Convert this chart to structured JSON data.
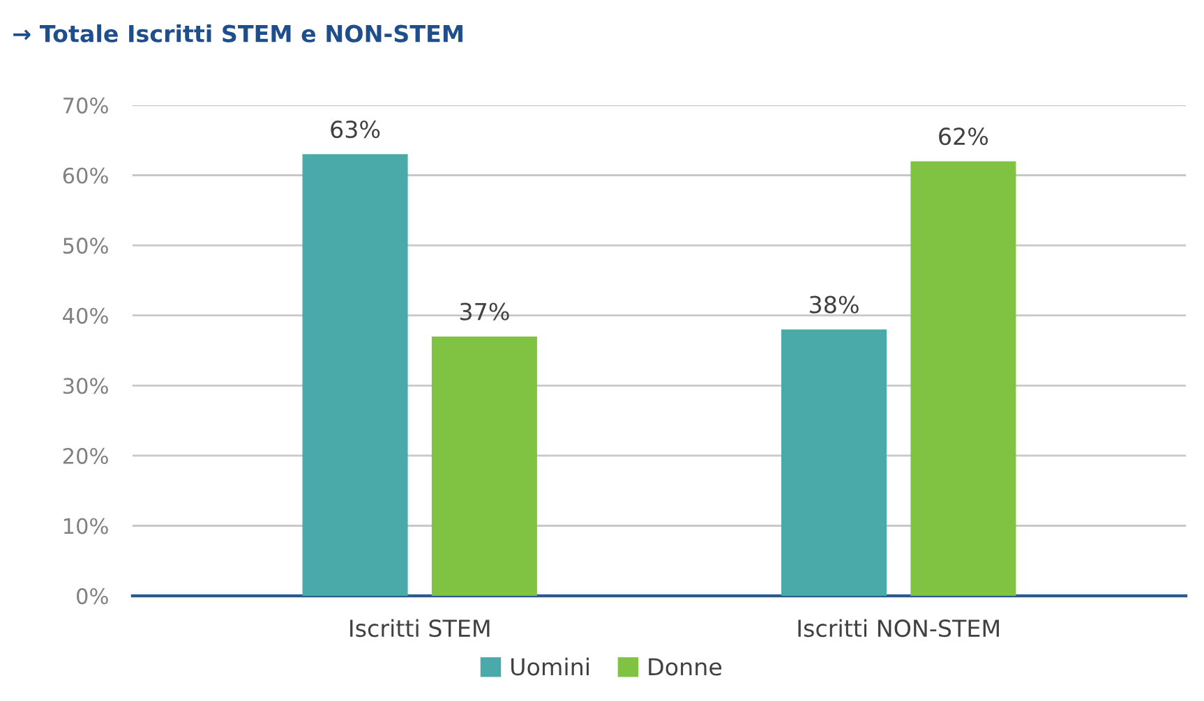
{
  "chart_data": {
    "type": "bar",
    "title": "→ Totale Iscritti STEM e NON-STEM",
    "categories": [
      "Iscritti STEM",
      "Iscritti NON-STEM"
    ],
    "series": [
      {
        "name": "Uomini",
        "color": "#4aa9a9",
        "values": [
          63,
          38
        ],
        "value_labels": [
          "63%",
          "38%"
        ]
      },
      {
        "name": "Donne",
        "color": "#80c342",
        "values": [
          37,
          62
        ],
        "value_labels": [
          "37%",
          "62%"
        ]
      }
    ],
    "ylim": [
      0,
      70
    ],
    "yticks": [
      {
        "value": 0,
        "label": "0%"
      },
      {
        "value": 10,
        "label": "10%"
      },
      {
        "value": 20,
        "label": "20%"
      },
      {
        "value": 30,
        "label": "30%"
      },
      {
        "value": 40,
        "label": "40%"
      },
      {
        "value": 50,
        "label": "50%"
      },
      {
        "value": 60,
        "label": "60%"
      },
      {
        "value": 70,
        "label": "70%"
      }
    ],
    "grid": "y",
    "legend": "bottom"
  }
}
